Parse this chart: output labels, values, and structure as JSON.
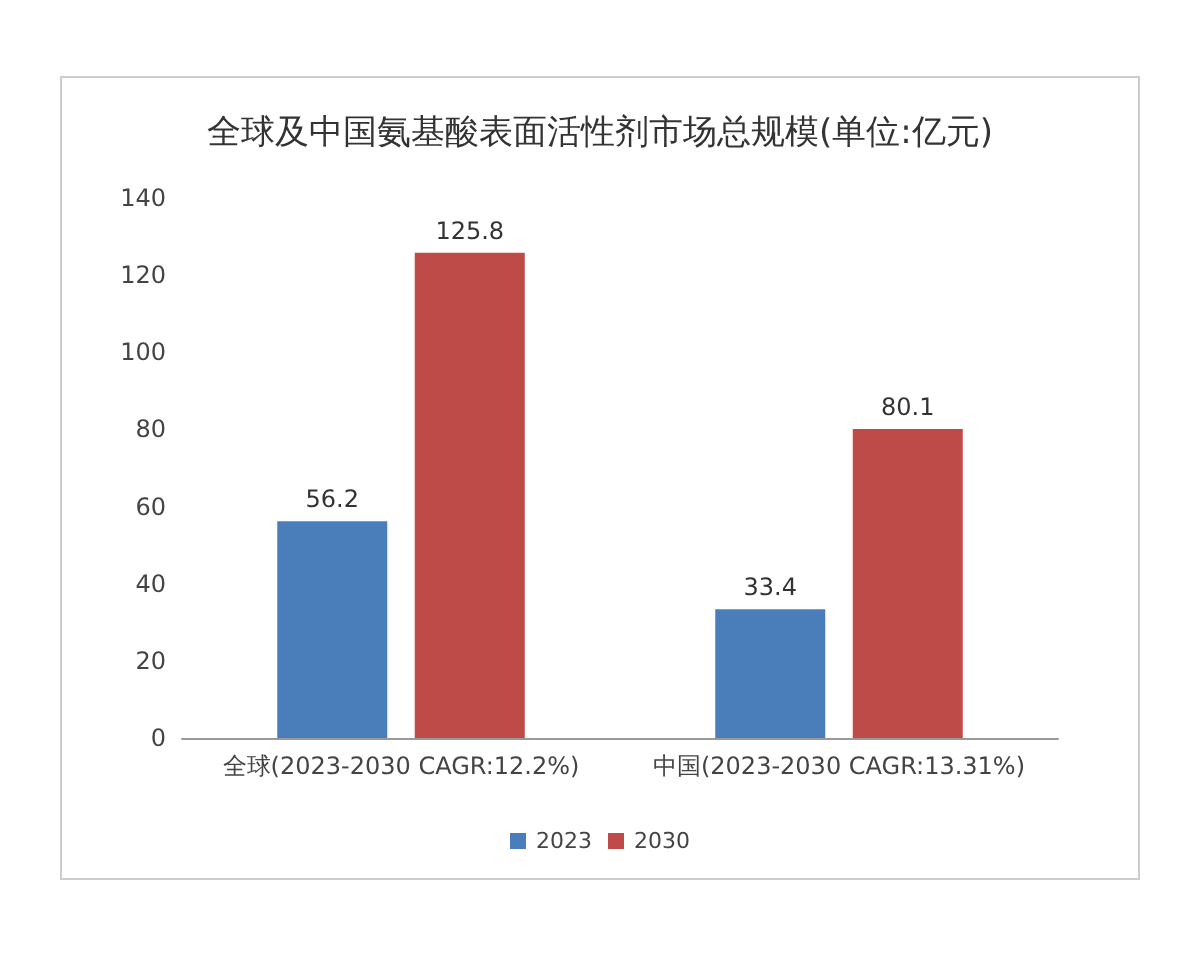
{
  "chart_data": {
    "type": "bar",
    "title": "全球及中国氨基酸表面活性剂市场总规模(单位:亿元)",
    "categories": [
      "全球(2023-2030 CAGR:12.2%)",
      "中国(2023-2030 CAGR:13.31%)"
    ],
    "series": [
      {
        "name": "2023",
        "color": "#4a7ebb",
        "values": [
          56.2,
          33.4
        ]
      },
      {
        "name": "2030",
        "color": "#be4b48",
        "values": [
          125.8,
          80.1
        ]
      }
    ],
    "ylim": [
      0,
      140
    ],
    "yticks": [
      0,
      20,
      40,
      60,
      80,
      100,
      120,
      140
    ],
    "grid": false,
    "legend": "bottom",
    "data_labels": true
  }
}
